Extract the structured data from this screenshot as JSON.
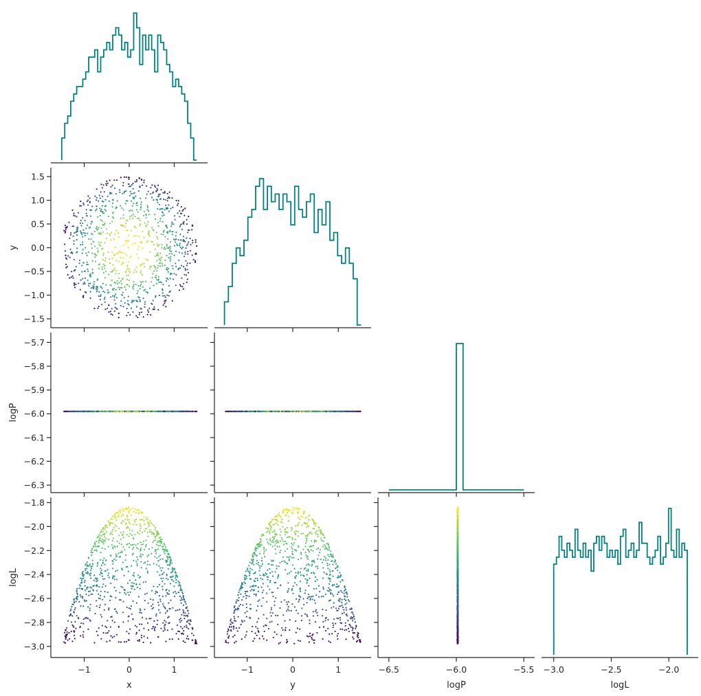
{
  "chart_data": {
    "type": "scatter",
    "variables": [
      "x",
      "y",
      "logP",
      "logL"
    ],
    "colormap": "viridis",
    "colormap_colors": [
      "#440154",
      "#3b528b",
      "#21908c",
      "#5dc863",
      "#fde725"
    ],
    "hist_color": "#008080",
    "color_by": "logL",
    "n_points": 1000,
    "x": {
      "range": [
        -1.5,
        1.5
      ],
      "lim": [
        -1.65,
        1.65
      ],
      "ticks": [
        -1,
        0,
        1
      ],
      "tick_labels": [
        "−1",
        "0",
        "1"
      ],
      "label": "x"
    },
    "y": {
      "range": [
        -1.5,
        1.5
      ],
      "lim": [
        -1.63,
        1.63
      ],
      "ticks": [
        -1.5,
        -1.0,
        -0.5,
        0.0,
        0.5,
        1.0,
        1.5
      ],
      "tick_labels": [
        "−1.5",
        "−1.0",
        "−0.5",
        "0.0",
        "0.5",
        "1.0",
        "1.5"
      ],
      "label": "y"
    },
    "logP": {
      "constant": -5.99,
      "lim": [
        -6.55,
        -5.45
      ],
      "ylim": [
        -6.32,
        -5.67
      ],
      "ticks_x": [
        -6.5,
        -6.0,
        -5.5
      ],
      "tick_labels_x": [
        "−6.5",
        "−6.0",
        "−5.5"
      ],
      "ticks_y": [
        -6.3,
        -6.2,
        -6.1,
        -6.0,
        -5.9,
        -5.8,
        -5.7
      ],
      "tick_labels_y": [
        "−6.3",
        "−6.2",
        "−6.1",
        "−6.0",
        "−5.9",
        "−5.8",
        "−5.7"
      ],
      "label": "logP"
    },
    "logL": {
      "range": [
        -3.0,
        -1.84
      ],
      "lim": [
        -3.07,
        -1.78
      ],
      "ticks_x": [
        -3.0,
        -2.5,
        -2.0
      ],
      "tick_labels_x": [
        "−3.0",
        "−2.5",
        "−2.0"
      ],
      "ticks_y": [
        -3.0,
        -2.8,
        -2.6,
        -2.4,
        -2.2,
        -2.0,
        -1.8
      ],
      "tick_labels_y": [
        "−3.0",
        "−2.8",
        "−2.6",
        "−2.4",
        "−2.2",
        "−2.0",
        "−1.8"
      ],
      "label": "logL"
    },
    "hist_x_counts": [
      3,
      5,
      6,
      8,
      9,
      10,
      10,
      11,
      12,
      14,
      14,
      15,
      12,
      14,
      15,
      16,
      15,
      17,
      18,
      17,
      15,
      16,
      14,
      15,
      20,
      18,
      13,
      17,
      15,
      17,
      15,
      12,
      17,
      16,
      15,
      13,
      12,
      10,
      11,
      10,
      9,
      8,
      5,
      3,
      0
    ],
    "hist_y_counts": [
      3,
      5,
      8,
      10,
      9,
      11,
      14,
      15,
      18,
      19,
      15,
      18,
      16,
      17,
      15,
      17,
      16,
      13,
      18,
      15,
      14,
      16,
      17,
      12,
      15,
      13,
      16,
      11,
      12,
      9,
      8,
      10,
      8,
      6,
      0
    ],
    "hist_logP_counts": [
      0,
      0,
      0,
      0,
      0,
      0,
      0,
      0,
      0,
      0,
      40,
      0,
      0,
      0,
      0,
      0,
      0,
      0,
      0,
      0
    ],
    "hist_logL_counts": [
      13,
      14,
      17,
      15,
      14,
      16,
      15,
      14,
      18,
      15,
      14,
      16,
      14,
      15,
      12,
      16,
      17,
      15,
      17,
      16,
      14,
      15,
      14,
      15,
      13,
      17,
      18,
      14,
      15,
      16,
      14,
      15,
      19,
      16,
      16,
      14,
      13,
      14,
      15,
      17,
      13,
      14,
      16,
      21,
      15,
      14,
      18,
      14,
      16,
      15
    ]
  }
}
